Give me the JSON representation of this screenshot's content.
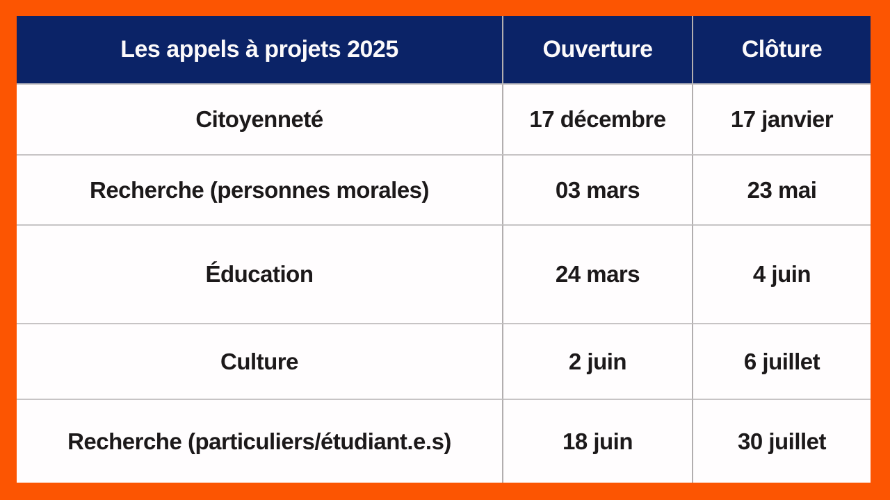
{
  "table": {
    "header": {
      "title": "Les appels à projets 2025",
      "col_ouverture": "Ouverture",
      "col_cloture": "Clôture"
    },
    "rows": [
      {
        "label": "Citoyenneté",
        "ouverture": "17 décembre",
        "cloture": "17 janvier"
      },
      {
        "label": "Recherche (personnes morales)",
        "ouverture": "03 mars",
        "cloture": "23 mai"
      },
      {
        "label": "Éducation",
        "ouverture": "24 mars",
        "cloture": "4 juin"
      },
      {
        "label": "Culture",
        "ouverture": "2 juin",
        "cloture": "6 juillet"
      },
      {
        "label": "Recherche (particuliers/étudiant.e.s)",
        "ouverture": "18 juin",
        "cloture": "30 juillet"
      }
    ]
  },
  "colors": {
    "frame_orange": "#FC5502",
    "header_navy": "#0B2367",
    "row_background": "#FFFDFE",
    "grid_vertical_line": "#B2AEAF",
    "grid_horizontal_line": "#C7C4C5",
    "header_text": "#FCFAFB",
    "body_text": "#1C191A"
  }
}
